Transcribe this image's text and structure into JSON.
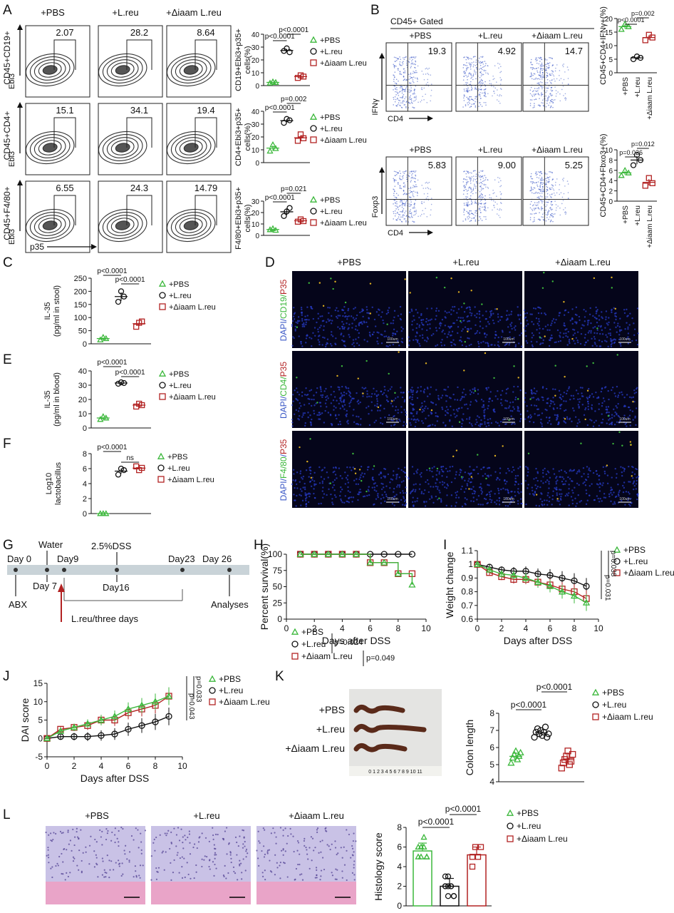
{
  "panel_letters": {
    "A": "A",
    "B": "B",
    "C": "C",
    "D": "D",
    "E": "E",
    "F": "F",
    "G": "G",
    "H": "H",
    "I": "I",
    "J": "J",
    "K": "K",
    "L": "L"
  },
  "groups": {
    "pbs": "+PBS",
    "lreu": "+L.reu",
    "diaam": "+Δiaam L.reu"
  },
  "colors": {
    "pbs": "#3cb83c",
    "lreu": "#111111",
    "diaam": "#b22222",
    "dss_bar": "#c9d3d8",
    "arrow": "#b22222"
  },
  "flow_A": {
    "row_labels": [
      "CD45+CD19+",
      "CD45+CD4+",
      "CD45+F4/80+"
    ],
    "y_axis_label": "Ebi3",
    "x_axis_label": "p35",
    "values": [
      [
        "2.07",
        "28.2",
        "8.64"
      ],
      [
        "15.1",
        "34.1",
        "19.4"
      ],
      [
        "6.55",
        "24.3",
        "14.79"
      ]
    ]
  },
  "flow_B": {
    "title": "CD45+ Gated",
    "row1_y": "IFNγ",
    "row1_x": "CD4",
    "row1_values": [
      "19.3",
      "4.92",
      "14.7"
    ],
    "row2_y": "Foxp3",
    "row2_x": "CD4",
    "row2_values": [
      "5.83",
      "9.00",
      "5.25"
    ]
  },
  "if_D": {
    "row_labels": [
      "DAPI/CD19/P35",
      "DAPI/CD4/P35",
      "DAPI/F4/80/P35"
    ],
    "scale": "100um"
  },
  "timeline_G": {
    "top": [
      "Water",
      "2.5%DSS"
    ],
    "days": [
      "Day 0",
      "Day 7",
      "Day9",
      "Day16",
      "Day23",
      "Day 26"
    ],
    "bottom": [
      "ABX",
      "Analyses"
    ],
    "treatment": "L.reu/three days"
  },
  "photo_K": {
    "ruler": "0 1 2 3 4 5 6 7 8 9 10 11"
  },
  "chart_data": [
    {
      "id": "A1",
      "type": "scatter",
      "ylabel": "CD19+Ebi3+p35+ cells(%)",
      "ylim": [
        0,
        40
      ],
      "yticks": [
        0,
        10,
        20,
        30,
        40
      ],
      "series": [
        {
          "name": "+PBS",
          "values": [
            2,
            3,
            2.5
          ]
        },
        {
          "name": "+L.reu",
          "values": [
            27,
            29,
            26
          ]
        },
        {
          "name": "+Δiaam L.reu",
          "values": [
            6,
            8,
            7
          ]
        }
      ],
      "annotations": [
        "p<0.0001",
        "p<0.0001"
      ]
    },
    {
      "id": "A2",
      "type": "scatter",
      "ylabel": "CD4+Ebi3+p35+ cells(%)",
      "ylim": [
        0,
        40
      ],
      "yticks": [
        0,
        10,
        20,
        30,
        40
      ],
      "series": [
        {
          "name": "+PBS",
          "values": [
            9,
            14,
            11
          ]
        },
        {
          "name": "+L.reu",
          "values": [
            31,
            34,
            33
          ]
        },
        {
          "name": "+Δiaam L.reu",
          "values": [
            17,
            22,
            19
          ]
        }
      ],
      "annotations": [
        "p<0.0001",
        "p=0.002"
      ]
    },
    {
      "id": "A3",
      "type": "scatter",
      "ylabel": "F4/80+Ebi3+p35+ cells(%)",
      "ylim": [
        0,
        30
      ],
      "yticks": [
        0,
        10,
        20,
        30
      ],
      "series": [
        {
          "name": "+PBS",
          "values": [
            5,
            6,
            4.5
          ]
        },
        {
          "name": "+L.reu",
          "values": [
            17,
            21,
            24
          ]
        },
        {
          "name": "+Δiaam L.reu",
          "values": [
            12,
            14,
            12.5
          ]
        }
      ],
      "annotations": [
        "p<0.0001",
        "p=0.021"
      ]
    },
    {
      "id": "B1",
      "type": "scatter",
      "ylabel": "CD45+CD4+IFNγ+(%)",
      "ylim": [
        0,
        20
      ],
      "yticks": [
        0,
        5,
        10,
        15,
        20
      ],
      "series": [
        {
          "name": "+PBS",
          "values": [
            16,
            18,
            17
          ]
        },
        {
          "name": "+L.reu",
          "values": [
            5,
            6,
            5.5
          ]
        },
        {
          "name": "+Δiaam L.reu",
          "values": [
            12,
            14,
            13
          ]
        }
      ],
      "xlabels": [
        "+PBS",
        "+L.reu",
        "+Δiaam L.reu"
      ],
      "annotations": [
        "p<0.0001",
        "p=0.002"
      ]
    },
    {
      "id": "B2",
      "type": "scatter",
      "ylabel": "CD45+CD4+Fbxo3+(%)",
      "ylim": [
        0,
        10
      ],
      "yticks": [
        0,
        2,
        4,
        6,
        8,
        10
      ],
      "series": [
        {
          "name": "+PBS",
          "values": [
            5,
            6,
            5.5
          ]
        },
        {
          "name": "+L.reu",
          "values": [
            7,
            9,
            8
          ]
        },
        {
          "name": "+Δiaam L.reu",
          "values": [
            3,
            4.5,
            3.5
          ]
        }
      ],
      "xlabels": [
        "+PBS",
        "+L.reu",
        "+Δiaam L.reu"
      ],
      "annotations": [
        "p=0.026",
        "p=0.012"
      ]
    },
    {
      "id": "C",
      "type": "scatter",
      "ylabel": "IL-35 (pg/ml in stool)",
      "ylim": [
        0,
        250
      ],
      "yticks": [
        0,
        50,
        100,
        150,
        200,
        250
      ],
      "series": [
        {
          "name": "+PBS",
          "values": [
            15,
            25,
            20
          ]
        },
        {
          "name": "+L.reu",
          "values": [
            160,
            200,
            180
          ]
        },
        {
          "name": "+Δiaam L.reu",
          "values": [
            65,
            80,
            85
          ]
        }
      ],
      "annotations": [
        "p<0.0001",
        "p<0.0001"
      ]
    },
    {
      "id": "E",
      "type": "scatter",
      "ylabel": "IL-35 (pg/ml in blood)",
      "ylim": [
        0,
        40
      ],
      "yticks": [
        0,
        10,
        20,
        30,
        40
      ],
      "series": [
        {
          "name": "+PBS",
          "values": [
            6,
            8,
            7
          ]
        },
        {
          "name": "+L.reu",
          "values": [
            31,
            32,
            31.5
          ]
        },
        {
          "name": "+Δiaam L.reu",
          "values": [
            15,
            17,
            16
          ]
        }
      ],
      "annotations": [
        "p<0.0001",
        "p<0.0001"
      ]
    },
    {
      "id": "F",
      "type": "scatter",
      "ylabel": "Log10 lactobacillus",
      "ylim": [
        0,
        8
      ],
      "yticks": [
        0,
        2,
        4,
        6,
        8
      ],
      "series": [
        {
          "name": "+PBS",
          "values": [
            0,
            0,
            0
          ]
        },
        {
          "name": "+L.reu",
          "values": [
            5.2,
            6,
            5.8
          ]
        },
        {
          "name": "+Δiaam L.reu",
          "values": [
            6.3,
            5.8,
            6.1
          ]
        }
      ],
      "annotations": [
        "p<0.0001",
        "ns"
      ]
    },
    {
      "id": "H",
      "type": "line",
      "xlabel": "Days after DSS",
      "ylabel": "Percent survival(%)",
      "xlim": [
        0,
        10
      ],
      "ylim": [
        0,
        100
      ],
      "xticks": [
        0,
        2,
        4,
        6,
        8,
        10
      ],
      "yticks": [
        0,
        25,
        50,
        75,
        100
      ],
      "x": [
        1,
        2,
        3,
        4,
        5,
        6,
        7,
        8,
        9
      ],
      "series": [
        {
          "name": "+PBS",
          "values": [
            100,
            100,
            100,
            100,
            100,
            87,
            87,
            70,
            53
          ]
        },
        {
          "name": "+L.reu",
          "values": [
            100,
            100,
            100,
            100,
            100,
            100,
            100,
            100,
            100
          ]
        },
        {
          "name": "+Δiaam L.reu",
          "values": [
            100,
            100,
            100,
            100,
            100,
            87,
            87,
            70,
            70
          ]
        }
      ],
      "annotations": [
        "p=0.024",
        "p=0.049"
      ]
    },
    {
      "id": "I",
      "type": "line",
      "xlabel": "Days after DSS",
      "ylabel": "Weight change",
      "xlim": [
        0,
        10
      ],
      "ylim": [
        0.6,
        1.1
      ],
      "xticks": [
        0,
        2,
        4,
        6,
        8,
        10
      ],
      "yticks": [
        0.6,
        0.7,
        0.8,
        0.9,
        1.0,
        1.1
      ],
      "x": [
        0,
        1,
        2,
        3,
        4,
        5,
        6,
        7,
        8,
        9
      ],
      "series": [
        {
          "name": "+PBS",
          "values": [
            1.0,
            0.96,
            0.93,
            0.92,
            0.9,
            0.87,
            0.84,
            0.8,
            0.77,
            0.72
          ]
        },
        {
          "name": "+L.reu",
          "values": [
            1.0,
            0.98,
            0.96,
            0.95,
            0.95,
            0.93,
            0.92,
            0.9,
            0.88,
            0.84
          ]
        },
        {
          "name": "+Δiaam L.reu",
          "values": [
            1.0,
            0.94,
            0.91,
            0.89,
            0.89,
            0.87,
            0.85,
            0.82,
            0.8,
            0.75
          ]
        }
      ],
      "annotations": [
        "p=0.038",
        "p=0.031"
      ]
    },
    {
      "id": "J",
      "type": "line",
      "xlabel": "Days after DSS",
      "ylabel": "DAI score",
      "xlim": [
        0,
        10
      ],
      "ylim": [
        -5,
        15
      ],
      "xticks": [
        0,
        2,
        4,
        6,
        8,
        10
      ],
      "yticks": [
        -5,
        0,
        5,
        10,
        15
      ],
      "x": [
        0,
        1,
        2,
        3,
        4,
        5,
        6,
        7,
        8,
        9
      ],
      "series": [
        {
          "name": "+PBS",
          "values": [
            0,
            2,
            3,
            4,
            5,
            6,
            8,
            9,
            10,
            11.5
          ]
        },
        {
          "name": "+L.reu",
          "values": [
            0,
            0.5,
            0.5,
            0.5,
            0.8,
            1.2,
            2.5,
            3.5,
            4.5,
            6
          ]
        },
        {
          "name": "+Δiaam L.reu",
          "values": [
            0,
            2.5,
            3,
            3.5,
            5,
            5,
            7,
            8,
            9,
            11.5
          ]
        }
      ],
      "annotations": [
        "p=0.033",
        "p=0.043"
      ]
    },
    {
      "id": "K",
      "type": "scatter",
      "ylabel": "Colon length",
      "ylim": [
        4,
        8
      ],
      "yticks": [
        4,
        5,
        6,
        7,
        8
      ],
      "series": [
        {
          "name": "+PBS",
          "values": [
            5.1,
            5.4,
            5.6,
            5.8,
            5.3,
            5.5,
            5.7
          ]
        },
        {
          "name": "+L.reu",
          "values": [
            6.6,
            6.9,
            7.1,
            6.8,
            7.0,
            6.7,
            6.9,
            7.2,
            6.6,
            6.8
          ]
        },
        {
          "name": "+Δiaam L.reu",
          "values": [
            4.8,
            5.1,
            5.3,
            5.5,
            5.8,
            5.0,
            5.2,
            5.6
          ]
        }
      ],
      "annotations": [
        "p<0.0001",
        "p<0.0001"
      ]
    },
    {
      "id": "L",
      "type": "bar",
      "ylabel": "Histology score",
      "ylim": [
        0,
        8
      ],
      "yticks": [
        0,
        2,
        4,
        6,
        8
      ],
      "categories": [
        "+PBS",
        "+L.reu",
        "+Δiaam L.reu"
      ],
      "values": [
        5.6,
        2,
        5.2
      ],
      "points": [
        [
          5,
          6,
          7,
          5,
          6,
          5,
          6,
          5
        ],
        [
          2,
          1,
          2,
          1,
          3,
          2,
          2,
          1,
          2,
          3
        ],
        [
          4,
          6,
          5,
          6,
          5
        ]
      ],
      "annotations": [
        "p<0.0001",
        "p<0.0001"
      ]
    }
  ]
}
